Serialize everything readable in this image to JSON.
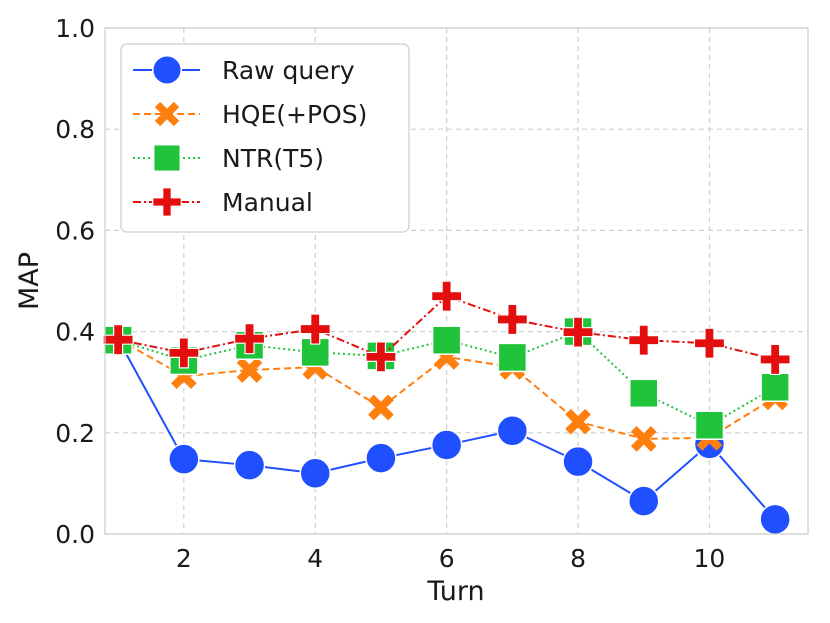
{
  "chart_data": {
    "type": "line",
    "title": "",
    "xlabel": "Turn",
    "ylabel": "MAP",
    "xlim": [
      0.8,
      11.5
    ],
    "ylim": [
      0.0,
      1.0
    ],
    "xticks": [
      2,
      4,
      6,
      8,
      10
    ],
    "yticks": [
      0.0,
      0.2,
      0.4,
      0.6,
      0.8,
      1.0
    ],
    "ytick_labels": [
      "0.0",
      "0.2",
      "0.4",
      "0.6",
      "0.8",
      "1.0"
    ],
    "xtick_labels": [
      "2",
      "4",
      "6",
      "8",
      "10"
    ],
    "grid": true,
    "legend_position": "top-left",
    "x": [
      1,
      2,
      3,
      4,
      5,
      6,
      7,
      8,
      9,
      10,
      11
    ],
    "series": [
      {
        "name": "Raw query",
        "color": "#1f4fff",
        "marker": "circle",
        "line": "solid",
        "values": [
          0.385,
          0.148,
          0.136,
          0.12,
          0.15,
          0.176,
          0.204,
          0.143,
          0.065,
          0.178,
          0.029
        ]
      },
      {
        "name": "HQE(+POS)",
        "color": "#ff7f0e",
        "marker": "x",
        "line": "dashed",
        "values": [
          0.385,
          0.312,
          0.324,
          0.33,
          0.25,
          0.35,
          0.33,
          0.222,
          0.188,
          0.19,
          0.27
        ]
      },
      {
        "name": "NTR(T5)",
        "color": "#1fc43a",
        "marker": "square",
        "line": "dotted",
        "values": [
          0.383,
          0.343,
          0.373,
          0.359,
          0.352,
          0.383,
          0.349,
          0.4,
          0.278,
          0.215,
          0.29
        ]
      },
      {
        "name": "Manual",
        "color": "#e30f0f",
        "marker": "plus",
        "line": "dashdot",
        "values": [
          0.384,
          0.358,
          0.386,
          0.405,
          0.35,
          0.47,
          0.424,
          0.399,
          0.383,
          0.377,
          0.345
        ]
      }
    ]
  }
}
